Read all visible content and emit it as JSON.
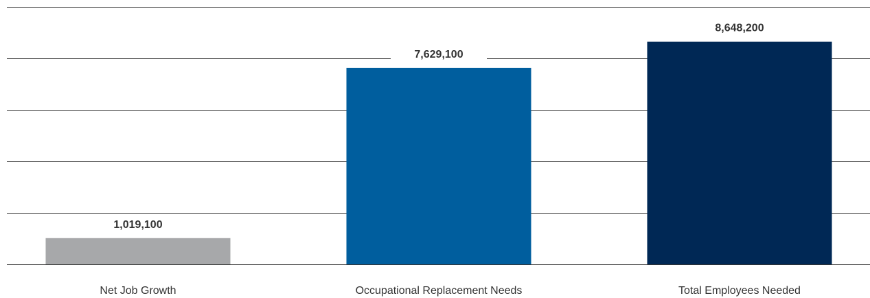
{
  "chart_data": {
    "type": "bar",
    "categories": [
      "Net Job Growth",
      "Occupational Replacement Needs",
      "Total Employees Needed"
    ],
    "values": [
      1019100,
      7629100,
      8648200
    ],
    "value_labels": [
      "1,019,100",
      "7,629,100",
      "8,648,200"
    ],
    "colors": [
      "#a7a8aa",
      "#005e9e",
      "#002855"
    ],
    "ylim": [
      0,
      10000000
    ],
    "grid": true,
    "gridline_color": "#333333",
    "legend": "none"
  }
}
